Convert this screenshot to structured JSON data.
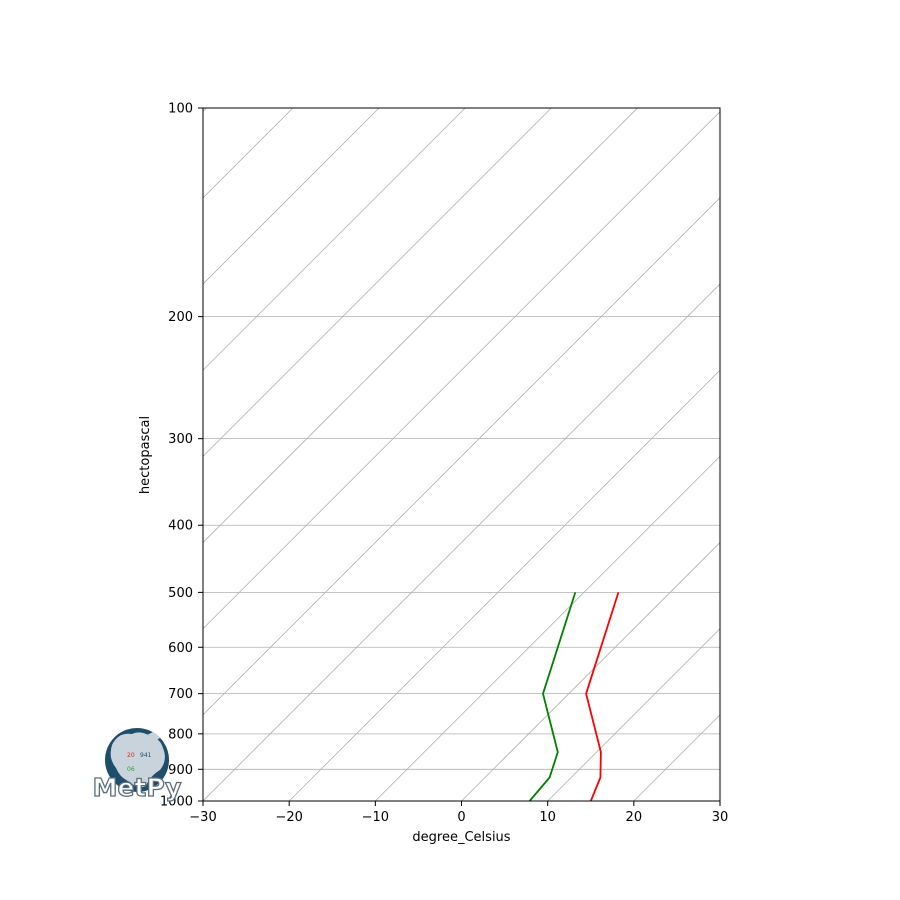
{
  "chart_data": {
    "type": "line",
    "subtype": "skew-t",
    "title": "",
    "xlabel": "degree_Celsius",
    "ylabel": "hectopascal",
    "xlim": [
      -30,
      30
    ],
    "ylim": [
      1000,
      100
    ],
    "y_scale": "log",
    "x_ticks": [
      -30,
      -20,
      -10,
      0,
      10,
      20,
      30
    ],
    "x_tick_labels": [
      "−30",
      "−20",
      "−10",
      "0",
      "10",
      "20",
      "30"
    ],
    "y_ticks": [
      1000,
      900,
      800,
      700,
      600,
      500,
      400,
      300,
      200,
      100
    ],
    "y_tick_labels": [
      "1000",
      "900",
      "800",
      "700",
      "600",
      "500",
      "400",
      "300",
      "200",
      "100"
    ],
    "grid": true,
    "skew_isotherms": [
      -120,
      -110,
      -100,
      -90,
      -80,
      -70,
      -60,
      -50,
      -40,
      -30,
      -20,
      -10,
      0,
      10,
      20,
      30
    ],
    "series": [
      {
        "name": "",
        "role": "temperature",
        "color": "#ff0000",
        "pressure": [
          1000,
          925,
          850,
          700,
          500
        ],
        "values": [
          15.0,
          13.4,
          10.5,
          2.0,
          -6.0
        ]
      },
      {
        "name": "",
        "role": "dewpoint",
        "color": "#008000",
        "pressure": [
          1000,
          925,
          850,
          700,
          500
        ],
        "values": [
          7.9,
          7.5,
          5.5,
          -3.0,
          -11.0
        ]
      }
    ],
    "logo": {
      "text": "MetPy",
      "station_temp": "20",
      "station_pressure": "941",
      "station_dewpoint": "06"
    }
  },
  "colors": {
    "grid": "#b0b0b0",
    "temperature": "#ff0000",
    "dewpoint": "#008000",
    "logo_globe": "#1f4e6b",
    "logo_land": "#c9d3dc"
  }
}
